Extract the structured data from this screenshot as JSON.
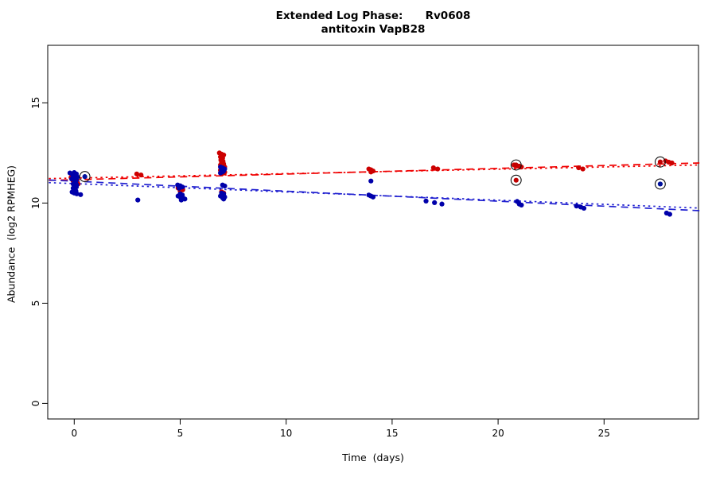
{
  "figure": {
    "title_line1": "Extended Log Phase:      Rv0608",
    "title_line2": "antitoxin VapB28",
    "xlabel": "Time  (days)",
    "ylabel": "Abundance  (log2 RPMHEG)"
  },
  "chart_data": {
    "type": "scatter",
    "title": "Extended Log Phase: Rv0608 antitoxin VapB28",
    "xlabel": "Time (days)",
    "ylabel": "Abundance (log2 RPMHEG)",
    "axes": {
      "xlim": [
        -1.2,
        29.5
      ],
      "ylim": [
        -0.8,
        17.9
      ],
      "xticks": [
        0,
        5,
        10,
        15,
        20,
        25
      ],
      "yticks": [
        0,
        5,
        10,
        15
      ],
      "grid": false,
      "box": true
    },
    "legend": "none",
    "colors": {
      "red_series": "#CC0000",
      "blue_series": "#0000AA",
      "red_line": "#F00000",
      "blue_line": "#2020D0",
      "flag_ring": "#111111"
    },
    "series": [
      {
        "name": "red-condition",
        "color": "#CC0000",
        "points": [
          [
            -0.15,
            11.28
          ],
          [
            0,
            11.22
          ],
          [
            0.12,
            11.18
          ],
          [
            -0.05,
            11.1
          ],
          [
            0.1,
            11.05
          ],
          [
            0,
            11.0
          ],
          [
            0.18,
            10.95
          ],
          [
            2.95,
            11.45
          ],
          [
            3.15,
            11.4
          ],
          [
            4.9,
            10.75
          ],
          [
            5.0,
            10.7
          ],
          [
            5.12,
            10.66
          ],
          [
            5.0,
            10.6
          ],
          [
            4.95,
            10.36
          ],
          [
            5.1,
            10.3
          ],
          [
            6.85,
            12.5
          ],
          [
            6.95,
            12.44
          ],
          [
            7.05,
            12.4
          ],
          [
            6.9,
            12.3
          ],
          [
            7.0,
            12.24
          ],
          [
            6.92,
            12.14
          ],
          [
            7.02,
            12.08
          ],
          [
            6.95,
            12.0
          ],
          [
            7.05,
            11.95
          ],
          [
            6.9,
            11.9
          ],
          [
            7.0,
            11.85
          ],
          [
            7.1,
            11.8
          ],
          [
            6.95,
            11.74
          ],
          [
            7.05,
            11.7
          ],
          [
            6.9,
            11.64
          ],
          [
            7.0,
            11.6
          ],
          [
            7.1,
            11.54
          ],
          [
            7.0,
            11.48
          ],
          [
            6.95,
            10.56
          ],
          [
            7.05,
            10.5
          ],
          [
            7.0,
            10.44
          ],
          [
            13.9,
            11.7
          ],
          [
            14.0,
            11.66
          ],
          [
            14.1,
            11.6
          ],
          [
            14.0,
            11.55
          ],
          [
            16.95,
            11.76
          ],
          [
            17.15,
            11.7
          ],
          [
            20.75,
            11.9
          ],
          [
            21.0,
            11.84
          ],
          [
            21.1,
            11.8
          ],
          [
            23.8,
            11.76
          ],
          [
            24.0,
            11.7
          ],
          [
            27.9,
            12.1
          ],
          [
            28.05,
            12.04
          ],
          [
            28.2,
            12.0
          ]
        ]
      },
      {
        "name": "blue-condition",
        "color": "#0000AA",
        "points": [
          [
            -0.2,
            11.5
          ],
          [
            0,
            11.52
          ],
          [
            0.1,
            11.45
          ],
          [
            -0.07,
            11.4
          ],
          [
            0.05,
            11.35
          ],
          [
            0.15,
            11.3
          ],
          [
            0,
            11.25
          ],
          [
            -0.12,
            11.2
          ],
          [
            0.1,
            11.15
          ],
          [
            0.02,
            11.1
          ],
          [
            0.07,
            11.0
          ],
          [
            -0.05,
            10.95
          ],
          [
            0.12,
            10.9
          ],
          [
            0,
            10.85
          ],
          [
            0.1,
            10.8
          ],
          [
            -0.05,
            10.74
          ],
          [
            0.02,
            10.68
          ],
          [
            0.08,
            10.6
          ],
          [
            -0.1,
            10.55
          ],
          [
            0,
            10.5
          ],
          [
            0.12,
            10.46
          ],
          [
            0.3,
            10.42
          ],
          [
            3.0,
            10.15
          ],
          [
            4.88,
            10.9
          ],
          [
            5.0,
            10.86
          ],
          [
            5.1,
            10.8
          ],
          [
            4.95,
            10.74
          ],
          [
            5.0,
            10.46
          ],
          [
            5.1,
            10.4
          ],
          [
            4.9,
            10.35
          ],
          [
            5.0,
            10.3
          ],
          [
            5.12,
            10.26
          ],
          [
            5.22,
            10.2
          ],
          [
            5.05,
            10.15
          ],
          [
            6.9,
            11.8
          ],
          [
            7.0,
            11.76
          ],
          [
            7.1,
            11.7
          ],
          [
            6.95,
            11.64
          ],
          [
            7.05,
            11.6
          ],
          [
            7.0,
            11.55
          ],
          [
            6.9,
            11.5
          ],
          [
            7.0,
            10.9
          ],
          [
            7.1,
            10.85
          ],
          [
            6.95,
            10.5
          ],
          [
            7.05,
            10.46
          ],
          [
            7.0,
            10.4
          ],
          [
            6.9,
            10.35
          ],
          [
            7.1,
            10.3
          ],
          [
            7.0,
            10.26
          ],
          [
            7.05,
            10.2
          ],
          [
            14.0,
            11.1
          ],
          [
            13.9,
            10.4
          ],
          [
            14.0,
            10.35
          ],
          [
            14.1,
            10.3
          ],
          [
            16.6,
            10.1
          ],
          [
            17.0,
            10.02
          ],
          [
            17.35,
            9.95
          ],
          [
            20.9,
            10.08
          ],
          [
            21.0,
            9.95
          ],
          [
            21.1,
            9.9
          ],
          [
            23.7,
            9.85
          ],
          [
            23.9,
            9.8
          ],
          [
            24.05,
            9.74
          ],
          [
            27.95,
            9.5
          ],
          [
            28.1,
            9.44
          ]
        ]
      }
    ],
    "flagged_points": [
      {
        "x": 0.5,
        "y": 11.32,
        "color": "#00119C"
      },
      {
        "x": 20.85,
        "y": 11.9,
        "color": "#C00000"
      },
      {
        "x": 20.85,
        "y": 11.14,
        "color": "#C00000"
      },
      {
        "x": 27.65,
        "y": 12.05,
        "color": "#C00000"
      },
      {
        "x": 27.65,
        "y": 10.95,
        "color": "#00119C"
      }
    ],
    "trend_lines": [
      {
        "name": "red-fit-dashed",
        "color": "#F00000",
        "dash": "dashed",
        "x": [
          -1.2,
          29.5
        ],
        "y": [
          11.13,
          12.0
        ]
      },
      {
        "name": "red-fit-dotted",
        "color": "#F00000",
        "dash": "dotted",
        "x": [
          -1.2,
          29.5
        ],
        "y": [
          11.22,
          11.9
        ]
      },
      {
        "name": "blue-fit-dashed",
        "color": "#2020D0",
        "dash": "dashed",
        "x": [
          -1.2,
          29.5
        ],
        "y": [
          11.15,
          9.62
        ]
      },
      {
        "name": "blue-fit-dotted",
        "color": "#2020D0",
        "dash": "dotted",
        "x": [
          -1.2,
          29.5
        ],
        "y": [
          11.02,
          9.75
        ]
      }
    ]
  }
}
